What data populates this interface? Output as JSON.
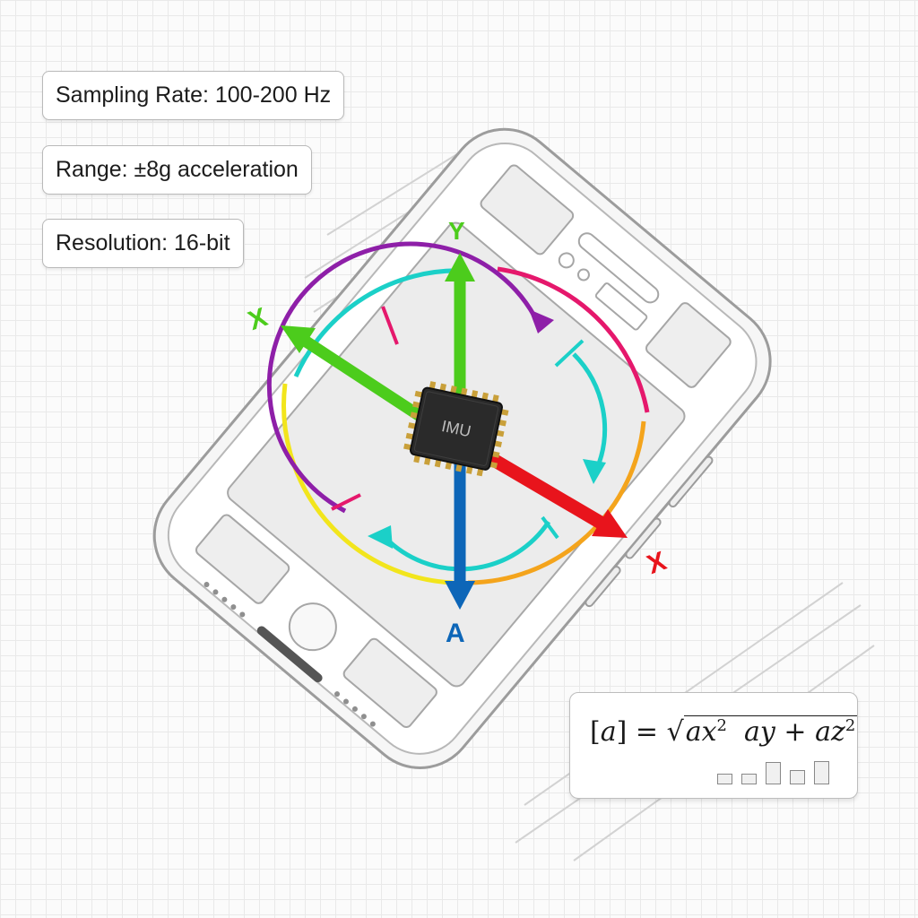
{
  "specs": {
    "sampling_rate": "Sampling Rate: 100-200 Hz",
    "range": "Range: ±8g acceleration",
    "resolution": "Resolution: 16-bit"
  },
  "chip": {
    "label": "IMU"
  },
  "axes": {
    "y_label": "Y",
    "x_upper_label": "X",
    "x_lower_label": "X",
    "a_label": "A"
  },
  "formula": {
    "lhs_open": "[",
    "lhs_var": "a",
    "lhs_close": "]",
    "equals": "=",
    "radical": "√",
    "term1": "ax",
    "sup1": "2",
    "term2": "ay",
    "plus": "+",
    "term3": "az",
    "sup3": "2"
  },
  "mini_bars": [
    0.45,
    0.45,
    0.95,
    0.6,
    1.0
  ],
  "colors": {
    "y_axis": "#4ccc1c",
    "x_axis_upper": "#4ccc1c",
    "x_axis_lower": "#e8141c",
    "a_axis": "#0d66b8",
    "cyan": "#1bd0c8",
    "purple": "#8e1fa8",
    "magenta": "#e5186c",
    "yellow": "#f2e51c",
    "orange": "#f4a41c"
  }
}
